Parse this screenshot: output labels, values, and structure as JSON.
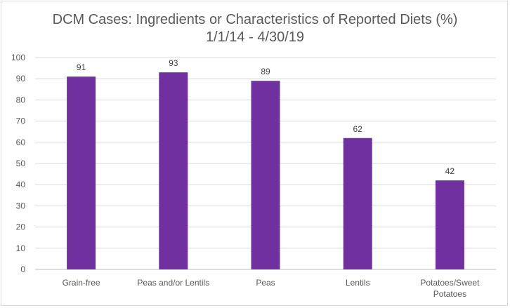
{
  "chart_data": {
    "type": "bar",
    "title": "DCM Cases: Ingredients or Characteristics of Reported Diets (%)",
    "subtitle": "1/1/14 - 4/30/19",
    "categories": [
      [
        "Grain-free"
      ],
      [
        "Peas and/or Lentils"
      ],
      [
        "Peas"
      ],
      [
        "Lentils"
      ],
      [
        "Potatoes/Sweet",
        "Potatoes"
      ]
    ],
    "values": [
      91,
      93,
      89,
      62,
      42
    ],
    "ylim": [
      0,
      100
    ],
    "yticks": [
      0,
      10,
      20,
      30,
      40,
      50,
      60,
      70,
      80,
      90,
      100
    ],
    "grid": true,
    "data_labels": true,
    "colors": {
      "bar": "#7030a0",
      "grid": "#d9d9d9",
      "axis": "#bfbfbf"
    }
  }
}
